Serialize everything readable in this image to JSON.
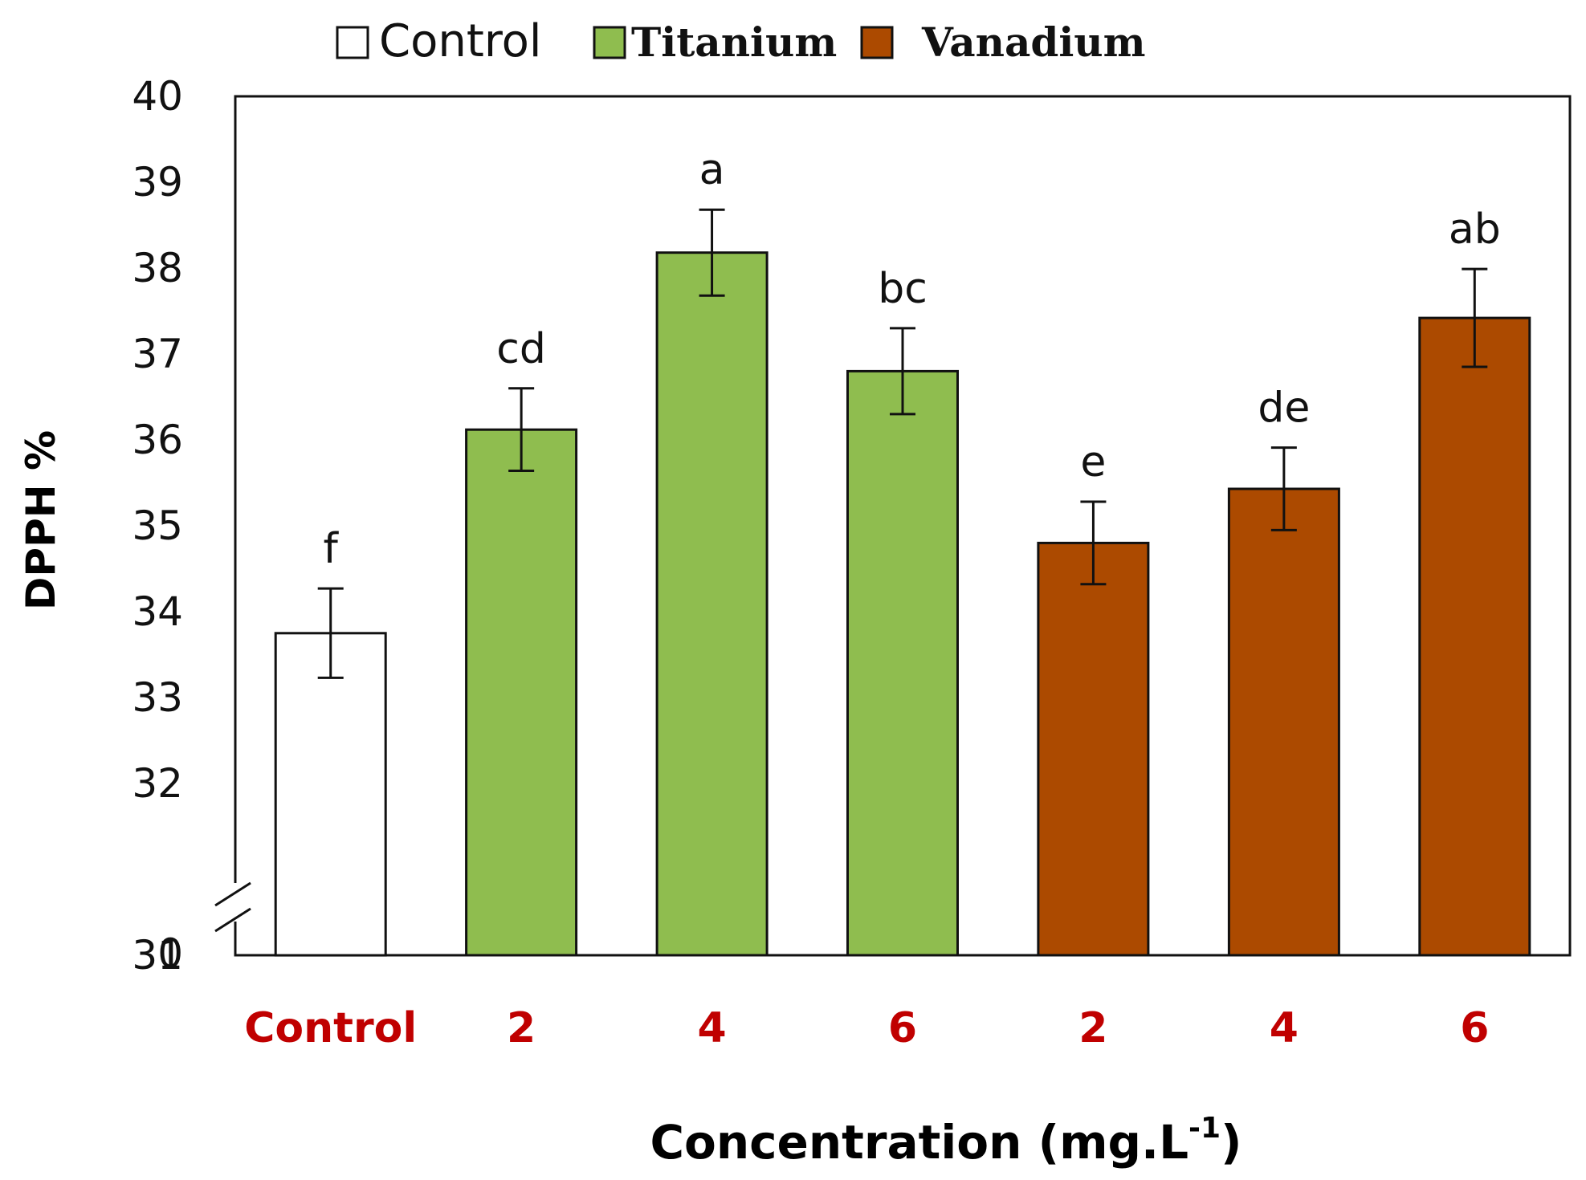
{
  "chart_data": {
    "type": "bar",
    "title": "",
    "xlabel": "Concentration (mg.L",
    "xlabel_superscript": "-1",
    "xlabel_close": ")",
    "ylabel": "DPPH %",
    "ylim": [
      31,
      40
    ],
    "axis_break": true,
    "y_ticks": [
      "0",
      "31",
      "32",
      "33",
      "34",
      "35",
      "36",
      "37",
      "38",
      "39",
      "40"
    ],
    "categories": [
      "Control",
      "2",
      "4",
      "6",
      "2",
      "4",
      "6"
    ],
    "category_label_color": "#c00000",
    "values": [
      33.75,
      36.12,
      38.18,
      36.8,
      34.8,
      35.43,
      37.42
    ],
    "errors": [
      0.52,
      0.48,
      0.5,
      0.5,
      0.48,
      0.48,
      0.57
    ],
    "groups": [
      "Control",
      "Titanium",
      "Titanium",
      "Titanium",
      "Vanadium",
      "Vanadium",
      "Vanadium"
    ],
    "significance": [
      "f",
      "cd",
      "a",
      "bc",
      "e",
      "de",
      "ab"
    ],
    "legend": [
      {
        "label": "Control",
        "color": "#ffffff"
      },
      {
        "label": "Titanium",
        "color": "#8fbd4f"
      },
      {
        "label": "Vanadium",
        "color": "#ac4a00"
      }
    ]
  }
}
